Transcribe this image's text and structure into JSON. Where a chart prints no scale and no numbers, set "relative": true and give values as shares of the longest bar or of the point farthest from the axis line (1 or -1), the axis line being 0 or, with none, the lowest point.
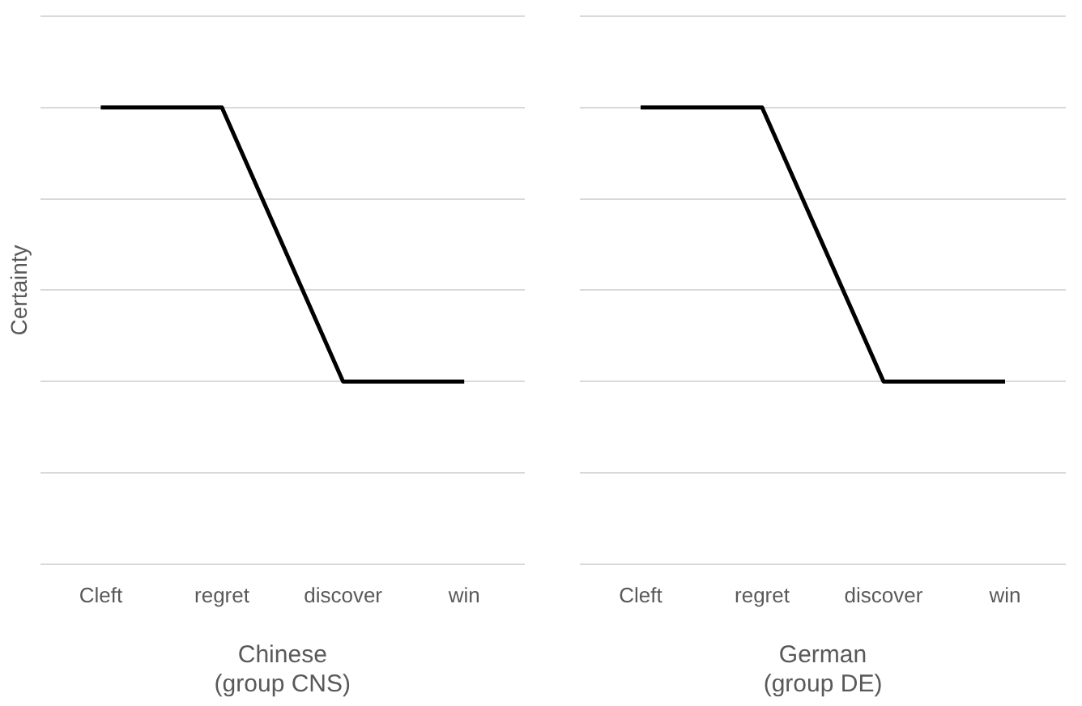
{
  "chart_data": [
    {
      "type": "line",
      "ylabel": "Certainty",
      "xlabel": "Chinese\n(group CNS)",
      "categories": [
        "Cleft",
        "regret",
        "discover",
        "win"
      ],
      "relative": true,
      "grid": "y",
      "legend": false,
      "marker": "none",
      "line_style": "solid",
      "series": [
        {
          "color": "#000000",
          "values": [
            1,
            1,
            0.4,
            0.4
          ]
        }
      ]
    },
    {
      "type": "line",
      "xlabel": "German\n(group DE)",
      "categories": [
        "Cleft",
        "regret",
        "discover",
        "win"
      ],
      "relative": true,
      "grid": "y",
      "legend": false,
      "marker": "none",
      "line_style": "solid",
      "series": [
        {
          "color": "#000000",
          "values": [
            1,
            1,
            0.4,
            0.4
          ]
        }
      ]
    }
  ]
}
